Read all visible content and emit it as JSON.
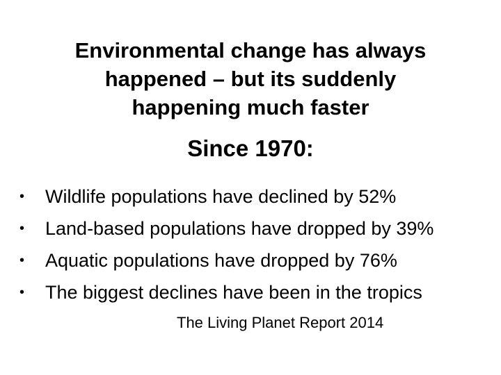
{
  "slide": {
    "title_lines": [
      "Environmental change has always",
      "happened – but its suddenly",
      "happening much faster"
    ],
    "subtitle": "Since 1970:",
    "bullet_glyph": "•",
    "bullets": [
      "Wildlife populations have declined by 52%",
      "Land-based populations have dropped by 39%",
      "Aquatic populations have dropped by 76%",
      "The biggest declines have been in the tropics"
    ],
    "source": "The Living Planet Report 2014"
  }
}
